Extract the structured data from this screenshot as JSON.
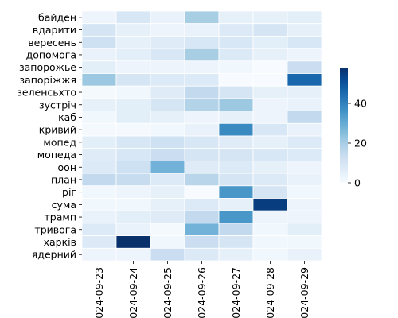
{
  "chart_data": {
    "type": "heatmap",
    "title": "",
    "xlabel": "",
    "ylabel": "",
    "x": [
      "2024-09-23",
      "2024-09-24",
      "2024-09-25",
      "2024-09-26",
      "2024-09-27",
      "2024-09-28",
      "2024-09-29"
    ],
    "y": [
      "байден",
      "вдарити",
      "вересень",
      "допомога",
      "запорожье",
      "запоріжжя",
      "зеленсьхто",
      "зустріч",
      "каб",
      "кривий",
      "мопед",
      "мопеда",
      "оон",
      "план",
      "ріг",
      "сума",
      "трамп",
      "тривога",
      "харків",
      "ядерний"
    ],
    "values": [
      [
        3,
        9,
        4,
        20,
        5,
        5,
        6
      ],
      [
        10,
        5,
        3,
        4,
        8,
        10,
        5
      ],
      [
        12,
        5,
        7,
        9,
        9,
        6,
        9
      ],
      [
        4,
        6,
        9,
        20,
        8,
        5,
        3
      ],
      [
        6,
        3,
        3,
        3,
        2,
        0,
        13
      ],
      [
        22,
        10,
        8,
        8,
        0,
        0,
        46
      ],
      [
        1,
        2,
        7,
        15,
        10,
        5,
        5
      ],
      [
        5,
        6,
        10,
        18,
        22,
        3,
        4
      ],
      [
        2,
        6,
        5,
        3,
        5,
        3,
        15
      ],
      [
        1,
        1,
        2,
        4,
        38,
        9,
        4
      ],
      [
        6,
        9,
        12,
        9,
        7,
        5,
        8
      ],
      [
        7,
        9,
        13,
        10,
        10,
        9,
        8
      ],
      [
        8,
        12,
        28,
        7,
        8,
        5,
        3
      ],
      [
        15,
        14,
        8,
        17,
        10,
        8,
        4
      ],
      [
        2,
        3,
        5,
        0,
        35,
        10,
        2
      ],
      [
        2,
        2,
        5,
        8,
        5,
        55,
        3
      ],
      [
        4,
        6,
        7,
        15,
        35,
        3,
        3
      ],
      [
        8,
        4,
        1,
        28,
        15,
        2,
        6
      ],
      [
        8,
        58,
        2,
        13,
        10,
        2,
        2
      ],
      [
        3,
        3,
        13,
        8,
        5,
        2,
        4
      ]
    ],
    "vmin": 0,
    "vmax": 58,
    "colormap": "Blues",
    "colorbar_ticks": [
      0,
      20,
      40
    ],
    "cell_border_color": "#ffffff",
    "grid": false
  }
}
